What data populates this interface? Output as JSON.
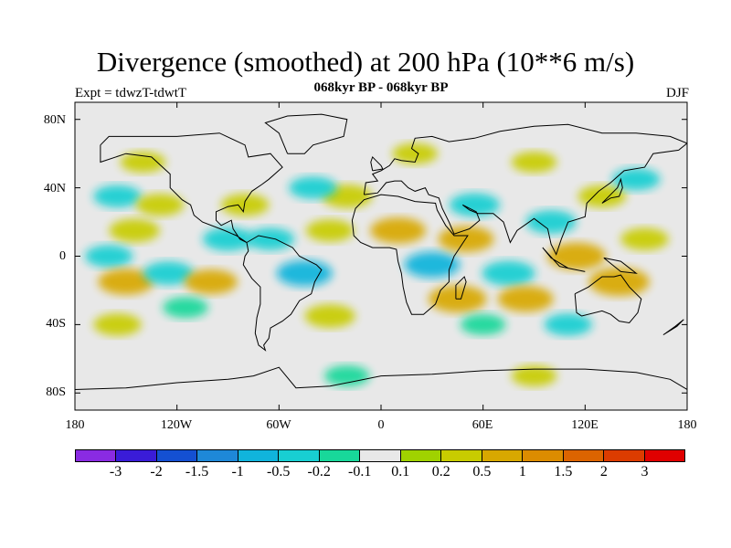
{
  "header": {
    "title": "Divergence (smoothed) at 200 hPa (10**6 m/s)",
    "subtitle": "068kyr BP - 068kyr BP",
    "experiment": "Expt = tdwzT-tdwtT",
    "season": "DJF"
  },
  "map": {
    "projection": "cylindrical-equidistant",
    "lon_range": [
      -180,
      180
    ],
    "lat_range": [
      -90,
      90
    ],
    "ocean_color": "#e8e8e8",
    "coastline_color": "#000000",
    "lat_ticks": [
      {
        "value": 80,
        "label": "80N"
      },
      {
        "value": 40,
        "label": "40N"
      },
      {
        "value": 0,
        "label": "0"
      },
      {
        "value": -40,
        "label": "40S"
      },
      {
        "value": -80,
        "label": "80S"
      }
    ],
    "lon_ticks": [
      {
        "value": -180,
        "label": "180"
      },
      {
        "value": -120,
        "label": "120W"
      },
      {
        "value": -60,
        "label": "60W"
      },
      {
        "value": 0,
        "label": "0"
      },
      {
        "value": 60,
        "label": "60E"
      },
      {
        "value": 120,
        "label": "120E"
      },
      {
        "value": 180,
        "label": "180"
      }
    ]
  },
  "colorbar": {
    "colors": [
      "#8a2be2",
      "#3a1cd8",
      "#1450d2",
      "#1e88d8",
      "#10b4dc",
      "#18cfd2",
      "#18d89a",
      "#e8e8e8",
      "#a0d200",
      "#c8cc00",
      "#d8a800",
      "#dc8c00",
      "#dc6400",
      "#dc3c00",
      "#e00000"
    ],
    "labels": [
      "-3",
      "-2",
      "-1.5",
      "-1",
      "-0.5",
      "-0.2",
      "-0.1",
      "0.1",
      "0.2",
      "0.5",
      "1",
      "1.5",
      "2",
      "3"
    ]
  },
  "chart_data": {
    "type": "heatmap",
    "title": "Divergence (smoothed) at 200 hPa (10**6 m/s)",
    "subtitle": "068kyr BP - 068kyr BP",
    "experiment": "Expt = tdwzT-tdwtT",
    "season": "DJF",
    "x_range": [
      -180,
      180
    ],
    "y_range": [
      -90,
      90
    ],
    "levels": [
      -3,
      -2,
      -1.5,
      -1,
      -0.5,
      -0.2,
      -0.1,
      0.1,
      0.2,
      0.5,
      1,
      1.5,
      2,
      3
    ],
    "anomaly_blobs": [
      {
        "lon": -140,
        "lat": 55,
        "value": 0.2
      },
      {
        "lon": -155,
        "lat": 35,
        "value": -0.3
      },
      {
        "lon": -130,
        "lat": 30,
        "value": 0.3
      },
      {
        "lon": -145,
        "lat": 15,
        "value": 0.4
      },
      {
        "lon": -160,
        "lat": 0,
        "value": -0.3
      },
      {
        "lon": -150,
        "lat": -15,
        "value": 0.6
      },
      {
        "lon": -125,
        "lat": -10,
        "value": -0.4
      },
      {
        "lon": -100,
        "lat": -15,
        "value": 0.5
      },
      {
        "lon": -115,
        "lat": -30,
        "value": -0.2
      },
      {
        "lon": -155,
        "lat": -40,
        "value": 0.3
      },
      {
        "lon": -90,
        "lat": 10,
        "value": -0.4
      },
      {
        "lon": -80,
        "lat": 30,
        "value": 0.3
      },
      {
        "lon": -65,
        "lat": 10,
        "value": -0.3
      },
      {
        "lon": -45,
        "lat": -10,
        "value": -0.6
      },
      {
        "lon": -30,
        "lat": 15,
        "value": 0.3
      },
      {
        "lon": -20,
        "lat": 35,
        "value": 0.4
      },
      {
        "lon": -40,
        "lat": 40,
        "value": -0.3
      },
      {
        "lon": -30,
        "lat": -35,
        "value": 0.4
      },
      {
        "lon": 10,
        "lat": 15,
        "value": 0.6
      },
      {
        "lon": 30,
        "lat": -5,
        "value": -0.6
      },
      {
        "lon": 50,
        "lat": 10,
        "value": 0.6
      },
      {
        "lon": 45,
        "lat": -25,
        "value": 0.7
      },
      {
        "lon": 55,
        "lat": 30,
        "value": -0.4
      },
      {
        "lon": 75,
        "lat": -10,
        "value": -0.5
      },
      {
        "lon": 85,
        "lat": -25,
        "value": 0.6
      },
      {
        "lon": 100,
        "lat": 20,
        "value": -0.4
      },
      {
        "lon": 115,
        "lat": 0,
        "value": 0.7
      },
      {
        "lon": 140,
        "lat": -15,
        "value": 0.8
      },
      {
        "lon": 155,
        "lat": 10,
        "value": 0.3
      },
      {
        "lon": 130,
        "lat": 35,
        "value": 0.3
      },
      {
        "lon": 150,
        "lat": 45,
        "value": -0.3
      },
      {
        "lon": 90,
        "lat": 55,
        "value": 0.2
      },
      {
        "lon": 20,
        "lat": 60,
        "value": 0.2
      },
      {
        "lon": 110,
        "lat": -40,
        "value": -0.3
      },
      {
        "lon": 60,
        "lat": -40,
        "value": -0.2
      },
      {
        "lon": 90,
        "lat": -70,
        "value": 0.2
      },
      {
        "lon": -20,
        "lat": -70,
        "value": -0.2
      }
    ]
  }
}
